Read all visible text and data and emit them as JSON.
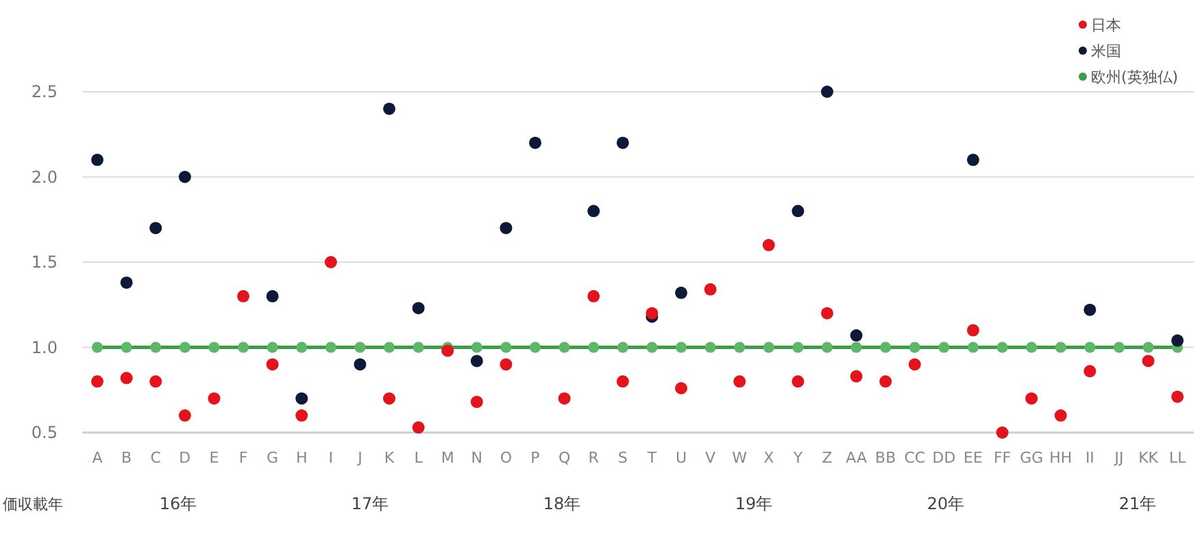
{
  "chart_data": {
    "type": "scatter",
    "categories": [
      "A",
      "B",
      "C",
      "D",
      "E",
      "F",
      "G",
      "H",
      "I",
      "J",
      "K",
      "L",
      "M",
      "N",
      "O",
      "P",
      "Q",
      "R",
      "S",
      "T",
      "U",
      "V",
      "W",
      "X",
      "Y",
      "Z",
      "AA",
      "BB",
      "CC",
      "DD",
      "EE",
      "FF",
      "GG",
      "HH",
      "II",
      "JJ",
      "KK",
      "LL"
    ],
    "series": [
      {
        "name": "日本",
        "color": "#e3141c",
        "values": [
          0.8,
          0.82,
          0.8,
          0.6,
          0.7,
          1.3,
          0.9,
          0.6,
          1.5,
          null,
          0.7,
          0.53,
          0.98,
          0.68,
          0.9,
          null,
          0.7,
          1.3,
          0.8,
          1.2,
          0.76,
          1.34,
          0.8,
          1.6,
          0.8,
          1.2,
          0.83,
          0.8,
          0.9,
          null,
          1.1,
          0.5,
          0.7,
          0.6,
          0.86,
          null,
          0.92,
          0.71
        ]
      },
      {
        "name": "米国",
        "color": "#0e1838",
        "values": [
          2.1,
          1.38,
          1.7,
          2.0,
          null,
          null,
          1.3,
          0.7,
          null,
          0.9,
          2.4,
          1.23,
          null,
          0.92,
          1.7,
          2.2,
          null,
          1.8,
          2.2,
          1.18,
          1.32,
          null,
          null,
          null,
          1.8,
          2.5,
          1.07,
          null,
          null,
          null,
          2.1,
          null,
          null,
          null,
          1.22,
          null,
          null,
          1.04
        ]
      },
      {
        "name": "欧州(英独仏)",
        "color": "#3a9e45",
        "type": "line",
        "values": [
          1,
          1,
          1,
          1,
          1,
          1,
          1,
          1,
          1,
          1,
          1,
          1,
          1,
          1,
          1,
          1,
          1,
          1,
          1,
          1,
          1,
          1,
          1,
          1,
          1,
          1,
          1,
          1,
          1,
          1,
          1,
          1,
          1,
          1,
          1,
          1,
          1,
          1
        ]
      }
    ],
    "ylim": [
      0.5,
      2.5
    ],
    "yticks": [
      {
        "value": 0.5,
        "label": "0.5"
      },
      {
        "value": 1.0,
        "label": "1.0"
      },
      {
        "value": 1.5,
        "label": "1.5"
      },
      {
        "value": 2.0,
        "label": "2.0"
      },
      {
        "value": 2.5,
        "label": "2.5"
      }
    ],
    "grid": "y",
    "legend": "top right",
    "marker": "circle",
    "annotations": [
      "価収載年",
      "16年",
      "17年",
      "18年",
      "19年",
      "20年",
      "21年"
    ]
  }
}
